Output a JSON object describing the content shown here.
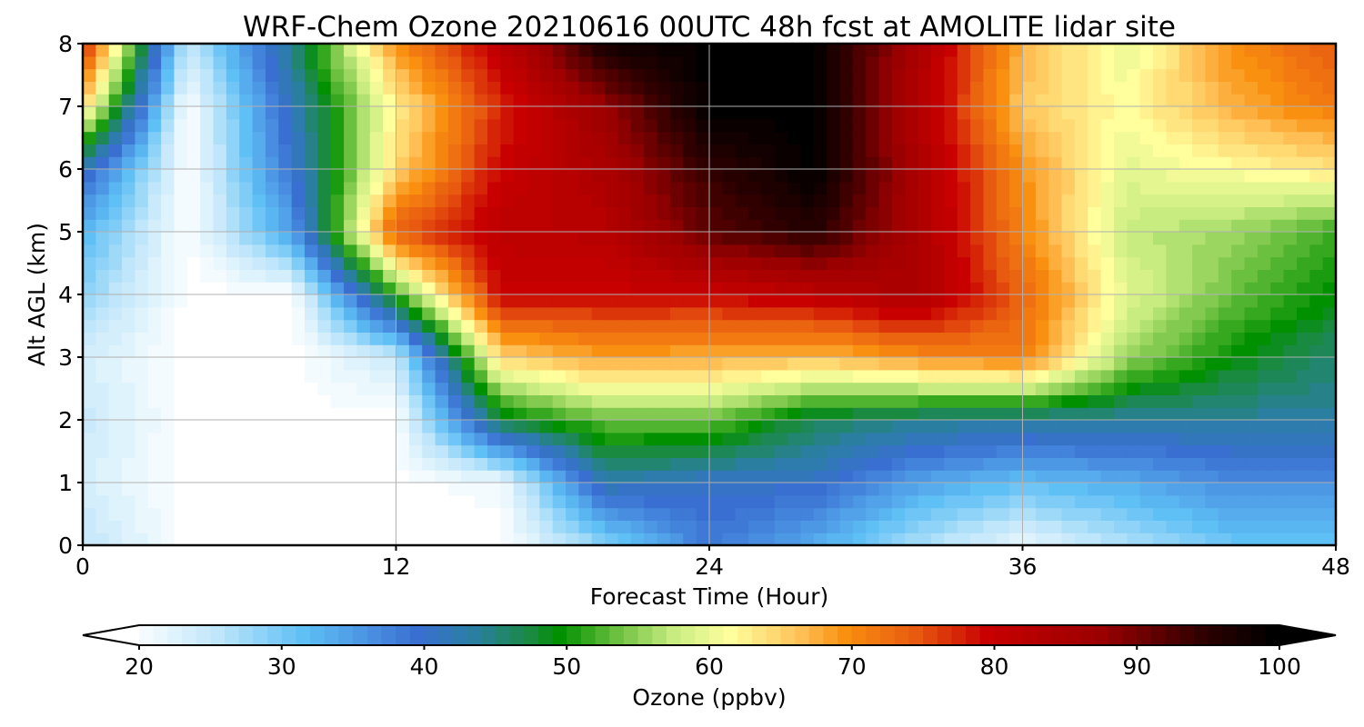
{
  "chart_data": {
    "type": "heatmap",
    "title": "WRF-Chem Ozone  20210616 00UTC 48h fcst at AMOLITE lidar site",
    "xlabel": "Forecast Time (Hour)",
    "ylabel": "Alt AGL (km)",
    "xlim": [
      0,
      48
    ],
    "ylim": [
      0,
      8
    ],
    "x_ticks": [
      "0",
      "12",
      "24",
      "36",
      "48"
    ],
    "y_ticks": [
      "0",
      "1",
      "2",
      "3",
      "4",
      "5",
      "6",
      "7",
      "8"
    ],
    "grid": true,
    "colorbar": {
      "label": "Ozone  (ppbv)",
      "range": [
        20,
        100
      ],
      "step": 1,
      "ticks": [
        "20",
        "30",
        "40",
        "50",
        "60",
        "70",
        "80",
        "90",
        "100"
      ],
      "extend": "both",
      "orientation": "horizontal",
      "placement": "bottom"
    },
    "x": [
      0,
      4,
      8,
      12,
      16,
      20,
      24,
      28,
      32,
      36,
      40,
      44,
      48
    ],
    "y": [
      0,
      1,
      2,
      3,
      4,
      5,
      6,
      7,
      8
    ],
    "z": [
      [
        26,
        20,
        20,
        20,
        20,
        29,
        39,
        34,
        27,
        22,
        27,
        31,
        32
      ],
      [
        24,
        20,
        20,
        20,
        21,
        43,
        41,
        41,
        35,
        32,
        34,
        37,
        37
      ],
      [
        25,
        20,
        20,
        20,
        48,
        54,
        54,
        47,
        45,
        44,
        44,
        44,
        44
      ],
      [
        24,
        20,
        20,
        25,
        65,
        69,
        68,
        67,
        70,
        72,
        56,
        50,
        46
      ],
      [
        29,
        20,
        20,
        52,
        80,
        80,
        80,
        82,
        85,
        74,
        60,
        54,
        50
      ],
      [
        33,
        20,
        35,
        75,
        82,
        83,
        92,
        96,
        85,
        71,
        58,
        56,
        52
      ],
      [
        42,
        20,
        40,
        65,
        80,
        85,
        95,
        100,
        85,
        70,
        60,
        62,
        64
      ],
      [
        65,
        20,
        42,
        63,
        78,
        88,
        100,
        100,
        84,
        66,
        62,
        68,
        72
      ],
      [
        80,
        25,
        45,
        70,
        82,
        98,
        100,
        100,
        85,
        68,
        60,
        70,
        75
      ]
    ]
  }
}
